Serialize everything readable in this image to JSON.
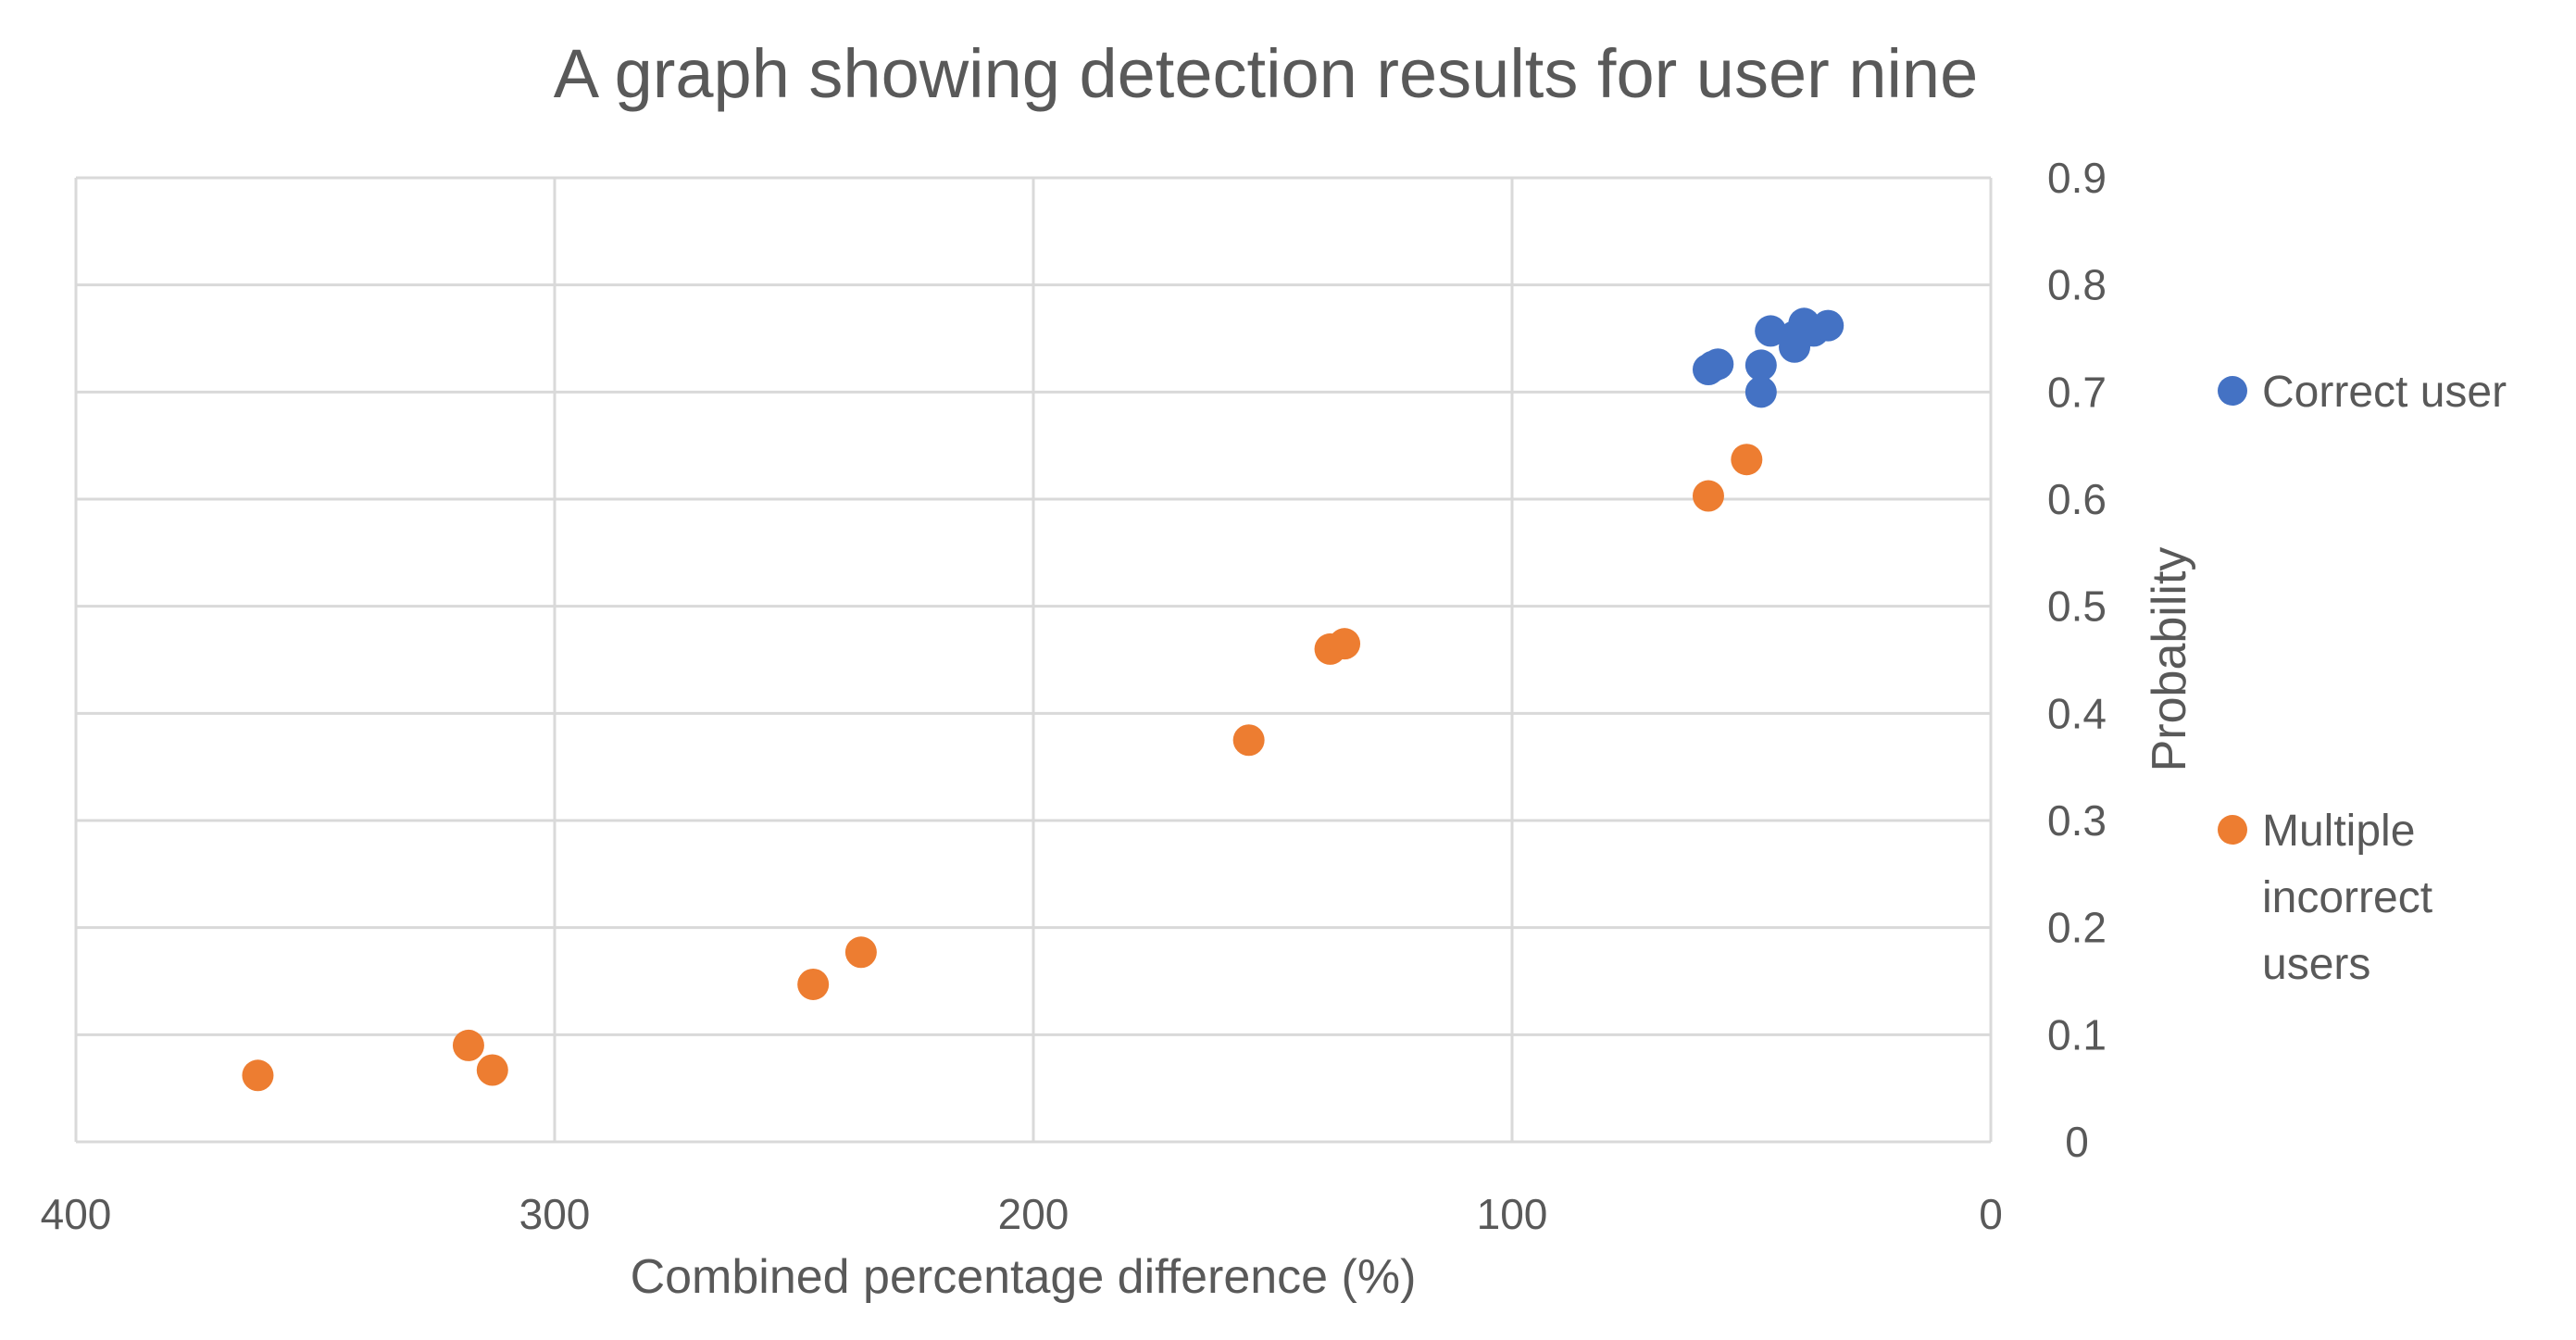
{
  "chart_data": {
    "type": "scatter",
    "title": "A graph showing detection results for user nine",
    "xlabel": "Combined percentage difference (%)",
    "ylabel": "Probability",
    "xlim": [
      0,
      400
    ],
    "x_reversed": true,
    "ylim": [
      0,
      0.9
    ],
    "x_ticks": [
      400,
      300,
      200,
      100,
      0
    ],
    "y_ticks": [
      0,
      0.1,
      0.2,
      0.3,
      0.4,
      0.5,
      0.6,
      0.7,
      0.8,
      0.9
    ],
    "grid": true,
    "legend_position": "right",
    "series": [
      {
        "name": "Correct user",
        "color": "#4472c4",
        "points": [
          {
            "x": 59,
            "y": 0.721
          },
          {
            "x": 58,
            "y": 0.724
          },
          {
            "x": 57,
            "y": 0.726
          },
          {
            "x": 48,
            "y": 0.725
          },
          {
            "x": 48,
            "y": 0.7
          },
          {
            "x": 46,
            "y": 0.757
          },
          {
            "x": 41,
            "y": 0.752
          },
          {
            "x": 41,
            "y": 0.742
          },
          {
            "x": 39,
            "y": 0.764
          },
          {
            "x": 37,
            "y": 0.757
          },
          {
            "x": 34,
            "y": 0.762
          }
        ]
      },
      {
        "name": "Multiple incorrect users",
        "color": "#ed7d31",
        "points": [
          {
            "x": 362,
            "y": 0.062
          },
          {
            "x": 318,
            "y": 0.09
          },
          {
            "x": 313,
            "y": 0.067
          },
          {
            "x": 246,
            "y": 0.147
          },
          {
            "x": 236,
            "y": 0.177
          },
          {
            "x": 155,
            "y": 0.375
          },
          {
            "x": 138,
            "y": 0.46
          },
          {
            "x": 135,
            "y": 0.465
          },
          {
            "x": 59,
            "y": 0.603
          },
          {
            "x": 51,
            "y": 0.637
          }
        ]
      }
    ],
    "legend": {
      "items": [
        {
          "label_lines": [
            "Correct user"
          ]
        },
        {
          "label_lines": [
            "Multiple",
            "incorrect",
            "users"
          ]
        }
      ]
    }
  }
}
